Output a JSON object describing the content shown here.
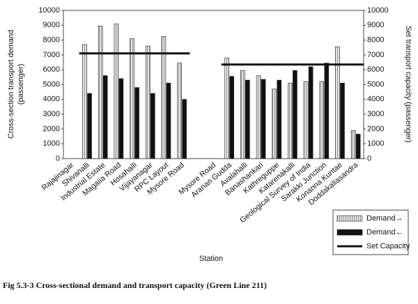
{
  "chart_data": {
    "type": "bar",
    "ylabel": [
      "Cross-section transport demand",
      "(passenger)"
    ],
    "y2label": "Set transport capacity (passenger)",
    "xlabel": "Station",
    "caption": "Fig 5.3-3 Cross-sectional demand and transport capacity (Green Line 211)",
    "categories": [
      "Rajajinagar",
      "Shivanalli",
      "Industrial Estate",
      "Magaiia Road",
      "Hosahalli",
      "Vijayanagar",
      "RPC Layout",
      "Mysore Road",
      null,
      "Mysore Road",
      "Aranan Gudda",
      "Avalahalli",
      "Banashankari",
      "Kathreguppe",
      "Katarenakalli",
      "Geological Survey of India",
      "Sarakki Junction",
      "Konanna Kuntae",
      "Doddakaliasandra"
    ],
    "series": [
      {
        "name": "Demand→",
        "color": "#e6e6e6",
        "values": [
          null,
          7700,
          8950,
          9100,
          8100,
          7600,
          8250,
          6450,
          null,
          null,
          6800,
          5950,
          5600,
          4700,
          5100,
          5200,
          5200,
          7550,
          1900
        ]
      },
      {
        "name": "Demand←",
        "color": "#111111",
        "values": [
          null,
          4400,
          5600,
          5400,
          4800,
          4400,
          5100,
          4000,
          null,
          null,
          5550,
          5300,
          5350,
          5300,
          5950,
          6200,
          6450,
          5100,
          1650
        ]
      },
      {
        "name": "Set Capacity",
        "color": "#111111",
        "axis": "y2",
        "values": [
          null,
          7100,
          7100,
          7100,
          7100,
          7100,
          7100,
          7100,
          null,
          null,
          6350,
          6350,
          6350,
          6350,
          6350,
          6350,
          6350,
          6350,
          6350
        ]
      }
    ],
    "ylim": [
      0,
      10000
    ],
    "yticks": [
      0,
      1000,
      2000,
      3000,
      4000,
      5000,
      6000,
      7000,
      8000,
      9000,
      10000
    ],
    "y2lim": [
      0,
      10000
    ],
    "y2ticks": [
      0,
      1000,
      2000,
      3000,
      4000,
      5000,
      6000,
      7000,
      8000,
      9000,
      10000
    ],
    "grid": false
  }
}
